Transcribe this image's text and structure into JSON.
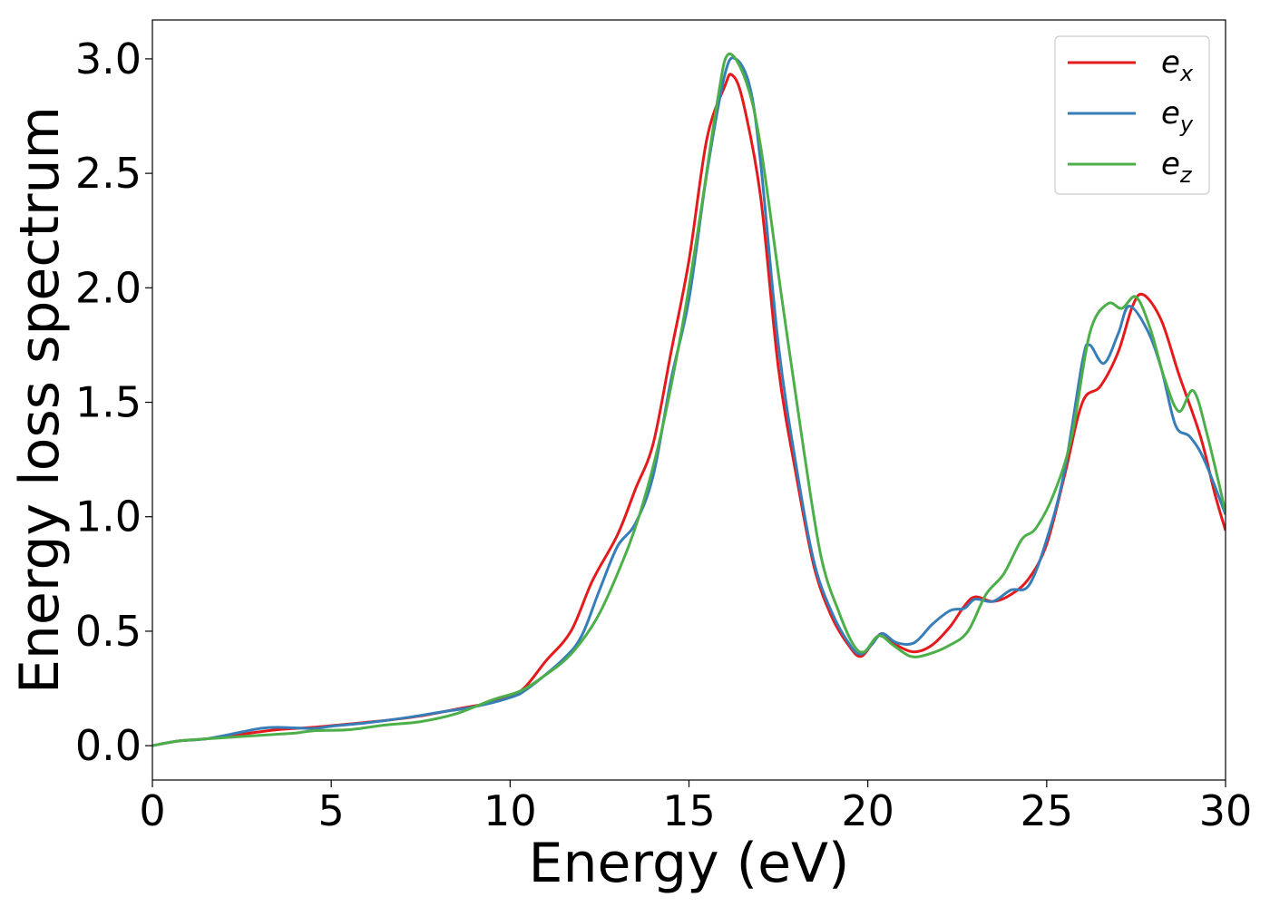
{
  "chart_data": {
    "type": "line",
    "title": "",
    "xlabel": "Energy (eV)",
    "ylabel": "Energy loss spectrum",
    "xlim": [
      0,
      30
    ],
    "ylim": [
      -0.15,
      3.17
    ],
    "xticks": [
      0,
      5,
      10,
      15,
      20,
      25,
      30
    ],
    "xtick_labels": [
      "0",
      "5",
      "10",
      "15",
      "20",
      "25",
      "30"
    ],
    "yticks": [
      0.0,
      0.5,
      1.0,
      1.5,
      2.0,
      2.5,
      3.0
    ],
    "ytick_labels": [
      "0.0",
      "0.5",
      "1.0",
      "1.5",
      "2.0",
      "2.5",
      "3.0"
    ],
    "grid": false,
    "legend_position": "upper-right",
    "series": [
      {
        "name": "e",
        "sub": "x",
        "color": "#e41a1c",
        "points": [
          [
            0,
            0.0
          ],
          [
            0.7,
            0.02
          ],
          [
            1.5,
            0.03
          ],
          [
            2.5,
            0.05
          ],
          [
            3.5,
            0.07
          ],
          [
            4.5,
            0.08
          ],
          [
            5.5,
            0.095
          ],
          [
            6.5,
            0.11
          ],
          [
            7.5,
            0.13
          ],
          [
            8.5,
            0.16
          ],
          [
            9.5,
            0.19
          ],
          [
            10.3,
            0.24
          ],
          [
            11,
            0.37
          ],
          [
            11.7,
            0.5
          ],
          [
            12.3,
            0.72
          ],
          [
            13,
            0.92
          ],
          [
            13.5,
            1.12
          ],
          [
            14,
            1.32
          ],
          [
            14.5,
            1.72
          ],
          [
            15,
            2.12
          ],
          [
            15.5,
            2.65
          ],
          [
            16,
            2.88
          ],
          [
            16.2,
            2.93
          ],
          [
            16.5,
            2.82
          ],
          [
            17,
            2.4
          ],
          [
            17.5,
            1.65
          ],
          [
            18,
            1.18
          ],
          [
            18.5,
            0.78
          ],
          [
            19,
            0.56
          ],
          [
            19.5,
            0.43
          ],
          [
            19.8,
            0.39
          ],
          [
            20.1,
            0.44
          ],
          [
            20.4,
            0.49
          ],
          [
            20.8,
            0.44
          ],
          [
            21.3,
            0.41
          ],
          [
            21.8,
            0.44
          ],
          [
            22.3,
            0.52
          ],
          [
            22.7,
            0.61
          ],
          [
            23,
            0.65
          ],
          [
            23.5,
            0.63
          ],
          [
            24,
            0.66
          ],
          [
            24.5,
            0.73
          ],
          [
            25,
            0.88
          ],
          [
            25.5,
            1.18
          ],
          [
            26,
            1.5
          ],
          [
            26.5,
            1.57
          ],
          [
            27,
            1.72
          ],
          [
            27.4,
            1.92
          ],
          [
            27.7,
            1.97
          ],
          [
            28.2,
            1.86
          ],
          [
            28.7,
            1.62
          ],
          [
            29.3,
            1.35
          ],
          [
            29.7,
            1.1
          ],
          [
            30,
            0.94
          ]
        ]
      },
      {
        "name": "e",
        "sub": "y",
        "color": "#377eb8",
        "points": [
          [
            0,
            0.0
          ],
          [
            0.7,
            0.02
          ],
          [
            1.5,
            0.03
          ],
          [
            2.5,
            0.06
          ],
          [
            3,
            0.075
          ],
          [
            3.5,
            0.08
          ],
          [
            4.5,
            0.075
          ],
          [
            5,
            0.085
          ],
          [
            6,
            0.1
          ],
          [
            7,
            0.12
          ],
          [
            8,
            0.145
          ],
          [
            9,
            0.17
          ],
          [
            10,
            0.21
          ],
          [
            10.5,
            0.25
          ],
          [
            11.5,
            0.38
          ],
          [
            12,
            0.48
          ],
          [
            12.5,
            0.68
          ],
          [
            13,
            0.87
          ],
          [
            13.5,
            0.97
          ],
          [
            14,
            1.18
          ],
          [
            14.5,
            1.6
          ],
          [
            15,
            1.95
          ],
          [
            15.5,
            2.5
          ],
          [
            16,
            2.93
          ],
          [
            16.3,
            3.0
          ],
          [
            16.7,
            2.88
          ],
          [
            17,
            2.55
          ],
          [
            17.5,
            1.75
          ],
          [
            18,
            1.22
          ],
          [
            18.5,
            0.8
          ],
          [
            19,
            0.58
          ],
          [
            19.5,
            0.44
          ],
          [
            19.8,
            0.4
          ],
          [
            20.1,
            0.44
          ],
          [
            20.4,
            0.49
          ],
          [
            20.8,
            0.45
          ],
          [
            21.3,
            0.45
          ],
          [
            21.8,
            0.53
          ],
          [
            22.3,
            0.59
          ],
          [
            22.7,
            0.6
          ],
          [
            23,
            0.64
          ],
          [
            23.5,
            0.63
          ],
          [
            24,
            0.68
          ],
          [
            24.5,
            0.7
          ],
          [
            25,
            0.9
          ],
          [
            25.5,
            1.2
          ],
          [
            26,
            1.68
          ],
          [
            26.2,
            1.75
          ],
          [
            26.6,
            1.67
          ],
          [
            27,
            1.8
          ],
          [
            27.3,
            1.92
          ],
          [
            27.8,
            1.82
          ],
          [
            28.2,
            1.65
          ],
          [
            28.6,
            1.4
          ],
          [
            29,
            1.35
          ],
          [
            29.4,
            1.25
          ],
          [
            30,
            1.01
          ]
        ]
      },
      {
        "name": "e",
        "sub": "z",
        "color": "#4daf4a",
        "points": [
          [
            0,
            0.0
          ],
          [
            0.7,
            0.02
          ],
          [
            1.5,
            0.03
          ],
          [
            2.5,
            0.04
          ],
          [
            3.5,
            0.05
          ],
          [
            4,
            0.055
          ],
          [
            4.5,
            0.065
          ],
          [
            5.5,
            0.07
          ],
          [
            6.5,
            0.09
          ],
          [
            7.5,
            0.105
          ],
          [
            8.5,
            0.14
          ],
          [
            9.5,
            0.2
          ],
          [
            10.3,
            0.24
          ],
          [
            11,
            0.31
          ],
          [
            11.7,
            0.4
          ],
          [
            12.4,
            0.55
          ],
          [
            13,
            0.75
          ],
          [
            13.6,
            1.0
          ],
          [
            14.2,
            1.35
          ],
          [
            14.8,
            1.82
          ],
          [
            15.3,
            2.3
          ],
          [
            15.8,
            2.82
          ],
          [
            16.1,
            3.02
          ],
          [
            16.6,
            2.9
          ],
          [
            17,
            2.62
          ],
          [
            17.6,
            1.95
          ],
          [
            18.2,
            1.3
          ],
          [
            18.7,
            0.82
          ],
          [
            19.2,
            0.58
          ],
          [
            19.6,
            0.44
          ],
          [
            19.9,
            0.41
          ],
          [
            20.3,
            0.48
          ],
          [
            20.7,
            0.44
          ],
          [
            21.2,
            0.39
          ],
          [
            21.7,
            0.4
          ],
          [
            22.3,
            0.44
          ],
          [
            22.8,
            0.5
          ],
          [
            23.3,
            0.66
          ],
          [
            23.8,
            0.75
          ],
          [
            24.3,
            0.9
          ],
          [
            24.7,
            0.95
          ],
          [
            25.2,
            1.1
          ],
          [
            25.7,
            1.35
          ],
          [
            26.2,
            1.8
          ],
          [
            26.7,
            1.93
          ],
          [
            27.1,
            1.91
          ],
          [
            27.5,
            1.96
          ],
          [
            27.9,
            1.82
          ],
          [
            28.3,
            1.6
          ],
          [
            28.7,
            1.46
          ],
          [
            29.1,
            1.55
          ],
          [
            29.5,
            1.35
          ],
          [
            30,
            1.02
          ]
        ]
      }
    ]
  }
}
